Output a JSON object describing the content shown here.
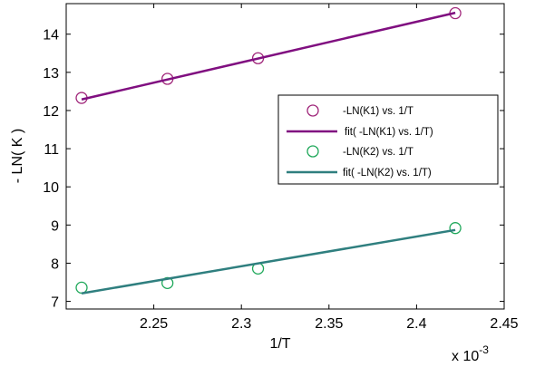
{
  "chart_data": {
    "type": "scatter",
    "xlabel": "1/T",
    "ylabel": "- LN( K )",
    "x_multiplier": "x 10",
    "x_multiplier_exp": "-3",
    "xlim": [
      2.2,
      2.45
    ],
    "ylim": [
      6.8,
      14.8
    ],
    "x_ticks": [
      2.25,
      2.3,
      2.35,
      2.4,
      2.45
    ],
    "x_tick_labels": [
      "2.25",
      "2.3",
      "2.35",
      "2.4",
      "2.45"
    ],
    "y_ticks": [
      7,
      8,
      9,
      10,
      11,
      12,
      13,
      14
    ],
    "y_tick_labels": [
      "7",
      "8",
      "9",
      "10",
      "11",
      "12",
      "13",
      "14"
    ],
    "grid": false,
    "legend_position": "right",
    "series": [
      {
        "name": "-LN(K1) vs. 1/T",
        "kind": "markers",
        "marker": "circle",
        "color": "#a0267a",
        "x": [
          2.2088,
          2.2578,
          2.3095,
          2.4221
        ],
        "y": [
          12.33,
          12.83,
          13.37,
          14.55
        ]
      },
      {
        "name": "fit( -LN(K1) vs. 1/T)",
        "kind": "line",
        "color": "#800f80",
        "x": [
          2.2088,
          2.4221
        ],
        "y": [
          12.29,
          14.56
        ]
      },
      {
        "name": "-LN(K2) vs. 1/T",
        "kind": "markers",
        "marker": "circle",
        "color": "#1fa85a",
        "x": [
          2.2088,
          2.2578,
          2.3095,
          2.4221
        ],
        "y": [
          7.36,
          7.48,
          7.86,
          8.92
        ]
      },
      {
        "name": "fit( -LN(K2) vs. 1/T)",
        "kind": "line",
        "color": "#2f7f7f",
        "x": [
          2.2088,
          2.4221
        ],
        "y": [
          7.21,
          8.87
        ]
      }
    ]
  }
}
